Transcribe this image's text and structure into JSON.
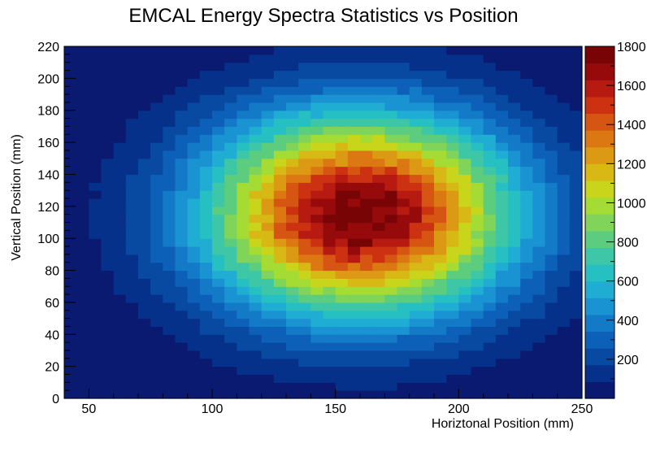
{
  "chart_data": {
    "type": "heatmap",
    "title": "EMCAL Energy Spectra Statistics vs Position",
    "xlabel": "Horiztonal Position (mm)",
    "ylabel": "Vertical Position (mm)",
    "xlim": [
      40,
      250
    ],
    "ylim": [
      0,
      220
    ],
    "x_ticks": [
      50,
      100,
      150,
      200,
      250
    ],
    "y_ticks": [
      0,
      20,
      40,
      60,
      80,
      100,
      120,
      140,
      160,
      180,
      200,
      220
    ],
    "bin_width_x": 5,
    "bin_width_y": 5,
    "z_range": [
      0,
      1800
    ],
    "z_ticks": [
      200,
      400,
      600,
      800,
      1000,
      1200,
      1400,
      1600,
      1800
    ],
    "peak": {
      "x": 160,
      "y": 115,
      "value": 1800
    },
    "falloff_scale_mm": 44,
    "grid": false,
    "colorbar": "right",
    "palette": [
      "#0a1a70",
      "#06318a",
      "#084aa2",
      "#0d60b8",
      "#137ac8",
      "#1a93d2",
      "#1fadd4",
      "#27c0c2",
      "#3ec7a6",
      "#5ccc7e",
      "#7fd459",
      "#a4dc34",
      "#c8d51a",
      "#d8b814",
      "#dc9a14",
      "#dc7812",
      "#d75512",
      "#cc3211",
      "#b61a10",
      "#960a0c",
      "#780406"
    ]
  }
}
